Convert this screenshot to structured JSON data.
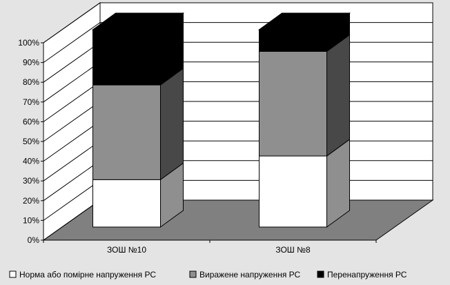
{
  "chart_data": {
    "type": "bar",
    "stacked": true,
    "normalized": true,
    "three_d": true,
    "categories": [
      "ЗОШ №10",
      "ЗОШ №8"
    ],
    "series": [
      {
        "name": "Норма або помірне напруження РС",
        "values": [
          24,
          36
        ],
        "color": "#ffffff"
      },
      {
        "name": "Виражене напруження РС",
        "values": [
          48,
          53
        ],
        "color": "#8f8f8f"
      },
      {
        "name": "Перенапруження РС",
        "values": [
          28,
          11
        ],
        "color": "#000000"
      }
    ],
    "y_ticks": [
      "0%",
      "10%",
      "20%",
      "30%",
      "40%",
      "50%",
      "60%",
      "70%",
      "80%",
      "90%",
      "100%"
    ],
    "ylim": [
      0,
      100
    ],
    "grid": true,
    "legend_position": "bottom",
    "colors": {
      "background": "#e4e4e4",
      "plot_wall": "#ffffff",
      "floor": "#808080",
      "grid": "#000000"
    }
  }
}
